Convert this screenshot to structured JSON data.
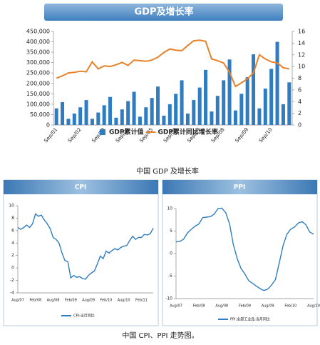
{
  "captions": [
    "中国 GDP 及增长率",
    "中国 CPI、PPI 走势图。"
  ],
  "chart_data": [
    {
      "type": "combo",
      "title": "GDP及增长率",
      "categories": [
        "Sep/01",
        null,
        null,
        null,
        "Sep/02",
        null,
        null,
        null,
        "Sep/03",
        null,
        null,
        null,
        "Sep/04",
        null,
        null,
        null,
        "Sep/05",
        null,
        null,
        null,
        "Sep/06",
        null,
        null,
        null,
        "Sep/07",
        null,
        null,
        null,
        "Sep/08",
        null,
        null,
        null,
        "Sep/09",
        null,
        null,
        null,
        "Sep/10",
        null,
        null,
        null
      ],
      "series": [
        {
          "name": "GDP累计值",
          "type": "bar",
          "color": "#2f7dc0",
          "values": [
            80000,
            110000,
            30000,
            55000,
            85000,
            120000,
            30000,
            60000,
            95000,
            135000,
            35000,
            75000,
            115000,
            160000,
            40000,
            85000,
            130000,
            185000,
            45000,
            100000,
            150000,
            215000,
            55000,
            120000,
            180000,
            265000,
            65000,
            140000,
            215000,
            315000,
            70000,
            150000,
            230000,
            340000,
            80000,
            175000,
            270000,
            400000,
            100000,
            205000
          ]
        },
        {
          "name": "GDP累计同比增长率",
          "type": "line",
          "axis": "y2",
          "color": "#e8822a",
          "values": [
            8.0,
            8.4,
            8.9,
            9.0,
            9.2,
            9.1,
            10.8,
            9.6,
            10.1,
            10.0,
            10.3,
            10.7,
            10.2,
            11.1,
            11.0,
            10.9,
            11.1,
            11.6,
            12.4,
            13.0,
            12.8,
            12.7,
            13.6,
            14.4,
            14.5,
            14.3,
            11.3,
            11.0,
            10.6,
            9.0,
            6.6,
            7.2,
            7.9,
            8.9,
            12.0,
            11.3,
            10.8,
            10.6,
            9.8,
            9.6
          ]
        }
      ],
      "ylim": [
        0,
        450000
      ],
      "yticks": [
        0,
        {
          "value": 50000,
          "label": "50,000"
        },
        {
          "value": 100000,
          "label": "100,000"
        },
        {
          "value": 150000,
          "label": "150,000"
        },
        {
          "value": 200000,
          "label": "200,000"
        },
        {
          "value": 250000,
          "label": "250,000"
        },
        {
          "value": 300000,
          "label": "300,000"
        },
        {
          "value": 350000,
          "label": "350,000"
        },
        {
          "value": 400000,
          "label": "400,000"
        },
        {
          "value": 450000,
          "label": "450,000"
        }
      ],
      "y2lim": [
        0,
        16
      ],
      "y2ticks": [
        0,
        2,
        4,
        6,
        8,
        10,
        12,
        14,
        16
      ],
      "grid": false
    },
    {
      "type": "line",
      "title": "CPI",
      "categories": [
        "Aug/07",
        null,
        null,
        null,
        null,
        null,
        "Feb/08",
        null,
        null,
        null,
        null,
        null,
        "Aug/08",
        null,
        null,
        null,
        null,
        null,
        "Feb/09",
        null,
        null,
        null,
        null,
        null,
        "Aug/09",
        null,
        null,
        null,
        null,
        null,
        "Feb/10",
        null,
        null,
        null,
        null,
        null,
        "Aug/10",
        null,
        null,
        null,
        null,
        null,
        "Feb/11",
        null,
        null,
        null,
        null
      ],
      "series": [
        {
          "name": "CPI:当月同比",
          "color": "#2f7dc0",
          "values": [
            6.5,
            6.2,
            6.5,
            6.9,
            6.5,
            7.1,
            8.7,
            8.3,
            8.5,
            7.7,
            7.1,
            6.3,
            4.9,
            4.6,
            4.0,
            2.4,
            1.2,
            1.0,
            -1.6,
            -1.2,
            -1.5,
            -1.4,
            -1.7,
            -1.8,
            -1.2,
            -0.8,
            -0.5,
            0.6,
            1.9,
            1.5,
            2.7,
            2.4,
            2.8,
            3.1,
            2.9,
            3.3,
            3.5,
            3.6,
            4.4,
            5.1,
            4.6,
            4.9,
            4.9,
            5.4,
            5.3,
            5.5,
            6.4
          ]
        }
      ],
      "ylim": [
        -4,
        10
      ],
      "yticks": [
        -4,
        -2,
        0,
        2,
        4,
        6,
        8,
        10
      ]
    },
    {
      "type": "line",
      "title": "PPI",
      "categories": [
        "Aug/07",
        null,
        null,
        null,
        null,
        null,
        "Feb/08",
        null,
        null,
        null,
        null,
        null,
        "Aug/08",
        null,
        null,
        null,
        null,
        null,
        "Feb/09",
        null,
        null,
        null,
        null,
        null,
        "Aug/09",
        null,
        null,
        null,
        null,
        null,
        "Feb/10",
        null,
        null,
        null,
        null,
        null,
        "Aug/10"
      ],
      "series": [
        {
          "name": "PPI:全部工业品:当月同比",
          "color": "#2f7dc0",
          "values": [
            2.6,
            2.7,
            3.2,
            4.6,
            5.4,
            6.1,
            6.6,
            8.0,
            8.1,
            8.2,
            8.8,
            10.0,
            10.1,
            9.1,
            6.6,
            2.0,
            -1.1,
            -3.3,
            -4.5,
            -6.0,
            -6.6,
            -7.2,
            -7.8,
            -8.2,
            -7.9,
            -7.0,
            -5.8,
            -2.1,
            1.7,
            4.3,
            5.4,
            5.9,
            6.8,
            7.1,
            6.4,
            4.8,
            4.3
          ]
        }
      ],
      "ylim": [
        -10,
        10
      ],
      "yticks": [
        -10,
        -5,
        0,
        5,
        10
      ]
    }
  ]
}
